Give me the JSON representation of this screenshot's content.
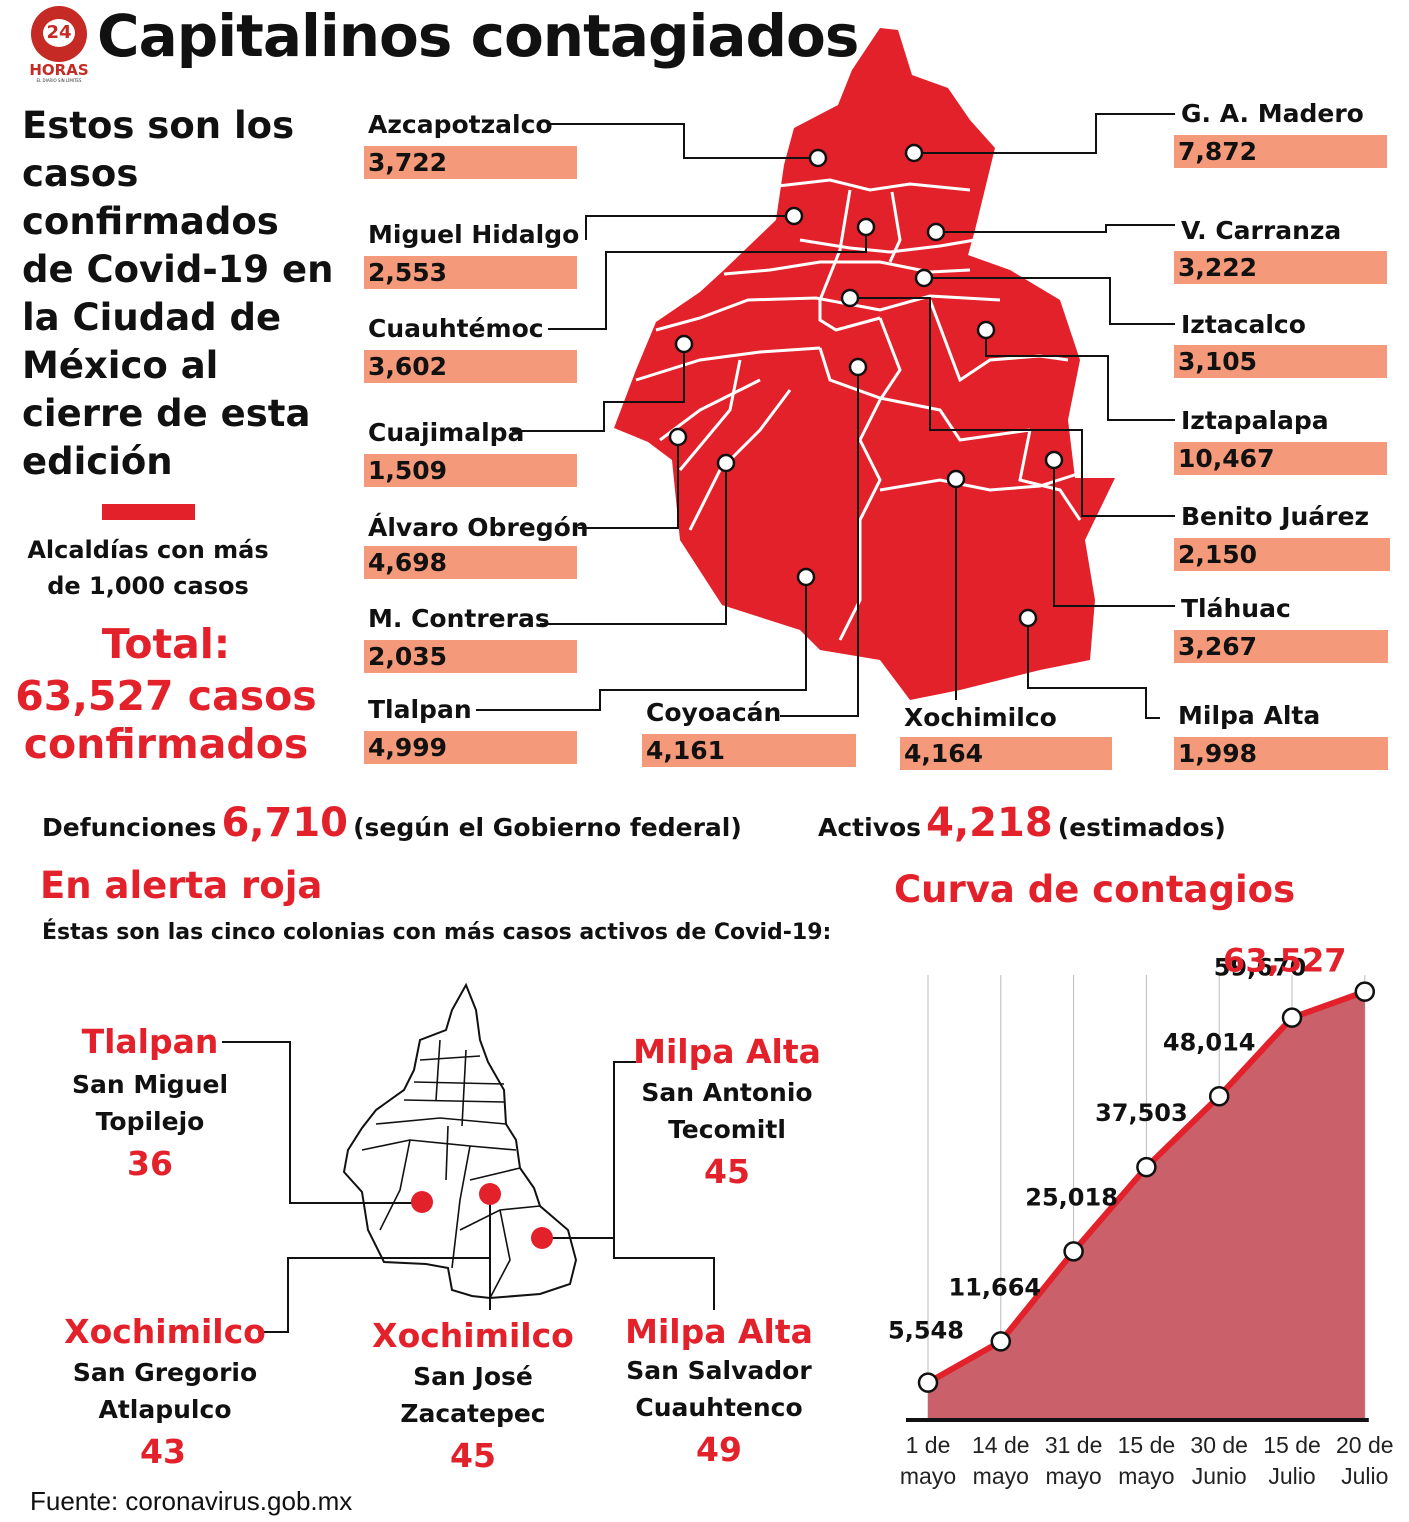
{
  "header": {
    "logo_num": "24",
    "logo_text": "HORAS",
    "logo_tagline": "EL DIARIO SIN LÍMITES",
    "title": "Capitalinos contagiados"
  },
  "intro": {
    "text": "Estos son los casos confirmados de Covid-19 en la Ciudad de México al cierre de esta edición"
  },
  "legend": {
    "label": "Alcaldías con más de 1,000 casos",
    "color": "#e3212b"
  },
  "total": {
    "label": "Total:",
    "line2": "63,527 casos",
    "line3": "confirmados"
  },
  "alcaldias": [
    {
      "name": "Azcapotzalco",
      "value": "3,722"
    },
    {
      "name": "Miguel Hidalgo",
      "value": "2,553"
    },
    {
      "name": "Cuauhtémoc",
      "value": "3,602"
    },
    {
      "name": "Cuajimalpa",
      "value": "1,509"
    },
    {
      "name": "Álvaro Obregón",
      "value": "4,698"
    },
    {
      "name": "M. Contreras",
      "value": "2,035"
    },
    {
      "name": "Tlalpan",
      "value": "4,999"
    },
    {
      "name": "Coyoacán",
      "value": "4,161"
    },
    {
      "name": "Xochimilco",
      "value": "4,164"
    },
    {
      "name": "G. A. Madero",
      "value": "7,872"
    },
    {
      "name": "V. Carranza",
      "value": "3,222"
    },
    {
      "name": "Iztacalco",
      "value": "3,105"
    },
    {
      "name": "Iztapalapa",
      "value": "10,467"
    },
    {
      "name": "Benito Juárez",
      "value": "2,150"
    },
    {
      "name": "Tláhuac",
      "value": "3,267"
    },
    {
      "name": "Milpa Alta",
      "value": "1,998"
    }
  ],
  "stats": {
    "deaths_label": "Defunciones",
    "deaths_value": "6,710",
    "deaths_note": "(según el Gobierno federal)",
    "active_label": "Activos",
    "active_value": "4,218",
    "active_note": "(estimados)"
  },
  "alert": {
    "title": "En alerta roja",
    "subtitle": "Éstas son las cinco colonias con más casos activos de Covid-19:",
    "colonias": [
      {
        "alcaldia": "Tlalpan",
        "l1": "San Miguel",
        "l2": "Topilejo",
        "value": "36"
      },
      {
        "alcaldia": "Milpa Alta",
        "l1": "San Antonio",
        "l2": "Tecomitl",
        "value": "45"
      },
      {
        "alcaldia": "Xochimilco",
        "l1": "San Gregorio",
        "l2": "Atlapulco",
        "value": "43"
      },
      {
        "alcaldia": "Xochimilco",
        "l1": "San José",
        "l2": "Zacatepec",
        "value": "45"
      },
      {
        "alcaldia": "Milpa Alta",
        "l1": "San Salvador",
        "l2": "Cuauhtenco",
        "value": "49"
      }
    ]
  },
  "chart_data": {
    "type": "area",
    "title": "Curva de contagios",
    "x": [
      "1 de mayo",
      "14 de mayo",
      "31 de mayo",
      "15 de mayo",
      "30 de Junio",
      "15 de Julio",
      "20 de Julio"
    ],
    "x_lines": [
      [
        "1 de",
        "mayo"
      ],
      [
        "14 de",
        "mayo"
      ],
      [
        "31 de",
        "mayo"
      ],
      [
        "15 de",
        "mayo"
      ],
      [
        "30 de",
        "Junio"
      ],
      [
        "15 de",
        "Julio"
      ],
      [
        "20 de",
        "Julio"
      ]
    ],
    "values": [
      5548,
      11664,
      25018,
      37503,
      48014,
      59670,
      63527
    ],
    "value_labels": [
      "5,548",
      "11,664",
      "25,018",
      "37,503",
      "48,014",
      "59,670",
      "63,527"
    ],
    "ylim": [
      0,
      66000
    ],
    "line_color": "#e3212b",
    "fill_color": "#c9606a"
  },
  "source": {
    "label": "Fuente:",
    "value": "coronavirus.gob.mx"
  }
}
